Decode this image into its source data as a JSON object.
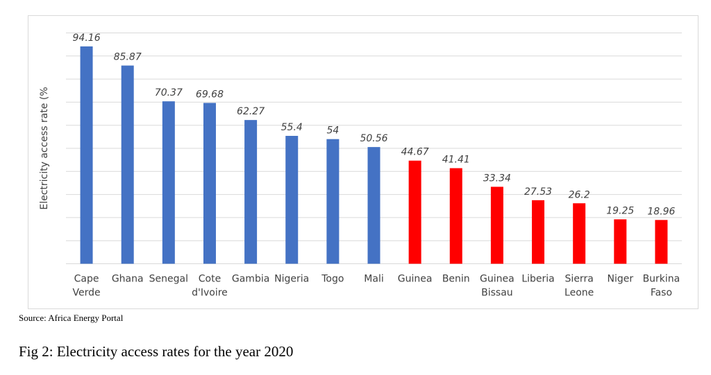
{
  "chart_data": {
    "type": "bar",
    "categories": [
      [
        "Cape",
        "Verde"
      ],
      [
        "Ghana"
      ],
      [
        "Senegal"
      ],
      [
        "Cote",
        "d'Ivoire"
      ],
      [
        "Gambia"
      ],
      [
        "Nigeria"
      ],
      [
        "Togo"
      ],
      [
        "Mali"
      ],
      [
        "Guinea"
      ],
      [
        "Benin"
      ],
      [
        "Guinea",
        "Bissau"
      ],
      [
        "Liberia"
      ],
      [
        "Sierra",
        "Leone"
      ],
      [
        "Niger"
      ],
      [
        "Burkina",
        "Faso"
      ]
    ],
    "values": [
      94.16,
      85.87,
      70.37,
      69.68,
      62.27,
      55.4,
      54,
      50.56,
      44.67,
      41.41,
      33.34,
      27.53,
      26.2,
      19.25,
      18.96
    ],
    "data_labels": [
      "94.16",
      "85.87",
      "70.37",
      "69.68",
      "62.27",
      "55.4",
      "54",
      "50.56",
      "44.67",
      "41.41",
      "33.34",
      "27.53",
      "26.2",
      "19.25",
      "18.96"
    ],
    "bar_colors": [
      "#4472c4",
      "#4472c4",
      "#4472c4",
      "#4472c4",
      "#4472c4",
      "#4472c4",
      "#4472c4",
      "#4472c4",
      "#ff0000",
      "#ff0000",
      "#ff0000",
      "#ff0000",
      "#ff0000",
      "#ff0000",
      "#ff0000"
    ],
    "ylabel": "Electricity access rate (%",
    "ylim": [
      0,
      100
    ],
    "y_grid_step": 10,
    "grid": true,
    "gridline_color": "#d9d9d9",
    "label_color": "#404040"
  },
  "source_note": "Source: Africa Energy Portal",
  "caption": "Fig 2: Electricity access rates for the year 2020"
}
